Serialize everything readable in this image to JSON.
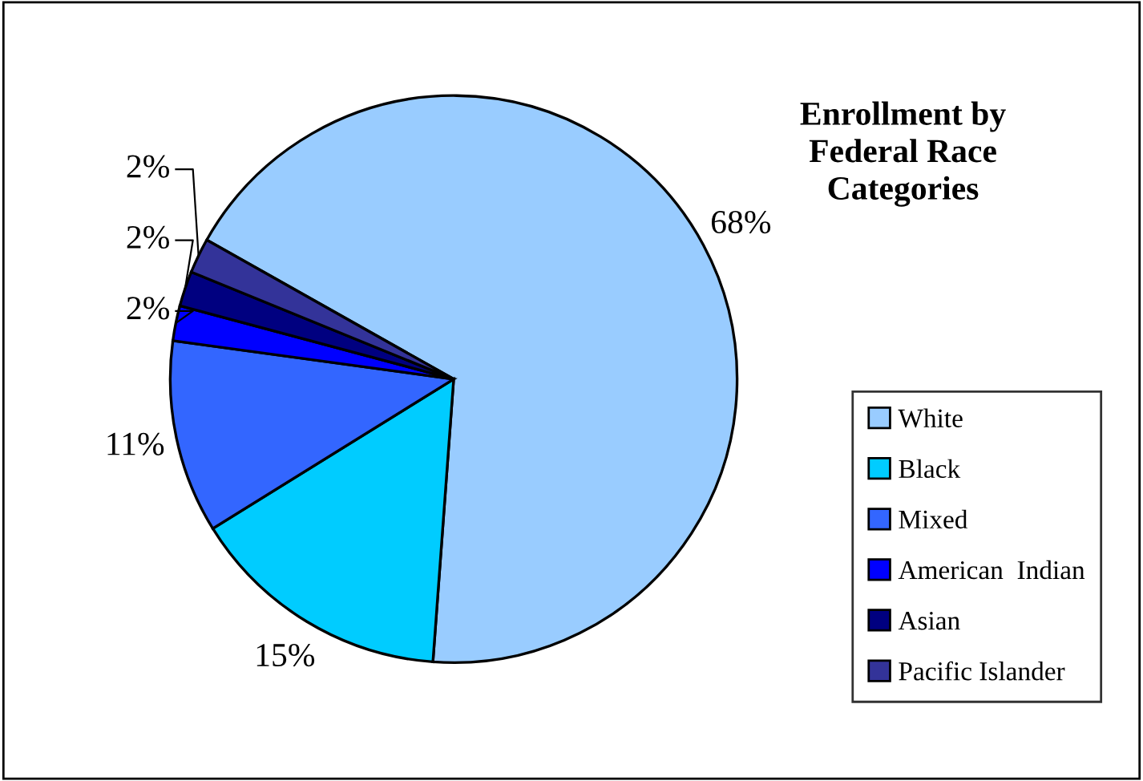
{
  "chart_data": {
    "type": "pie",
    "title": "Enrollment by\nFederal Race\nCategories",
    "categories": [
      "White",
      "Black",
      "Mixed",
      "American  Indian",
      "Asian",
      "Pacific Islander"
    ],
    "values": [
      68,
      15,
      11,
      2,
      2,
      2
    ],
    "colors": [
      "#99ccff",
      "#00ccff",
      "#3366ff",
      "#0000ff",
      "#000080",
      "#333399"
    ],
    "value_labels": [
      "68%",
      "15%",
      "11%",
      "2%",
      "2%",
      "2%"
    ],
    "legend": "right"
  }
}
